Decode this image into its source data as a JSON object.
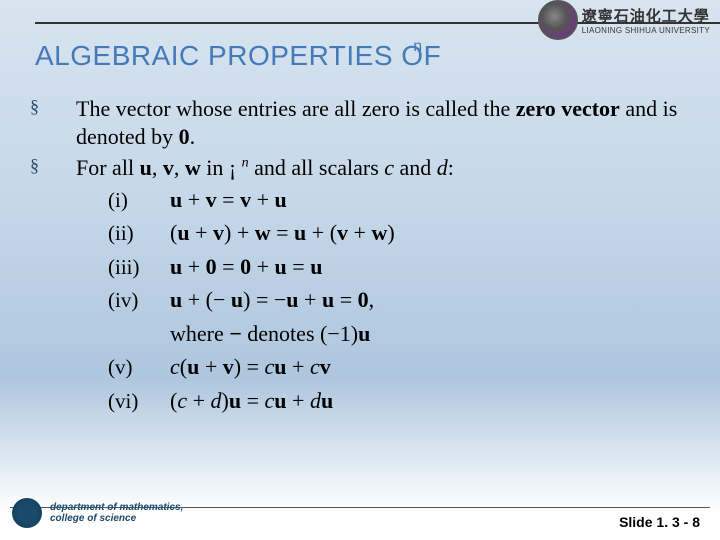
{
  "university": {
    "cn": "遼寧石油化工大學",
    "en": "LIAONING SHIHUA UNIVERSITY"
  },
  "title_main": "ALGEBRAIC PROPERTIES OF",
  "title_sup": "n",
  "bullets": {
    "b1_part1": "The vector whose entries are all zero is called the ",
    "b1_bold": "zero vector",
    "b1_part2": " and is denoted by ",
    "b1_zero": "0",
    "b1_part3": ".",
    "b2_part1": "For all ",
    "b2_u": "u",
    "b2_c1": ", ",
    "b2_v": "v",
    "b2_c2": ", ",
    "b2_w": "w",
    "b2_part2": " in ",
    "b2_set": "¡",
    "b2_n": "n",
    "b2_part3": " and all scalars ",
    "b2_c": "c",
    "b2_and": " and ",
    "b2_d": "d",
    "b2_colon": ":"
  },
  "props": {
    "r1": "(i)",
    "e1": "u + v = v + u",
    "r2": "(ii)",
    "e2": "(u + v) + w = u + (v + w)",
    "r3": "(iii)",
    "e3": "u + 0 = 0 + u = u",
    "r4": "(iv)",
    "e4": "u + (− u) = −u + u = 0",
    "e4_comma": ",",
    "where_1": "where ",
    "where_sym": "−",
    "where_2": " denotes ",
    "where_eq": "(−1)u",
    "r5": "(v)",
    "e5": "c(u + v) = cu + cv",
    "r6": "(vi)",
    "e6": "(c + d)u = cu + du"
  },
  "dept": {
    "line1": "department of mathematics,",
    "line2": "college of science"
  },
  "slide": "Slide 1. 3 - 8",
  "colors": {
    "title": "#457ab8",
    "bg_top": "#d8e4ef",
    "bg_mid": "#aec6de"
  }
}
